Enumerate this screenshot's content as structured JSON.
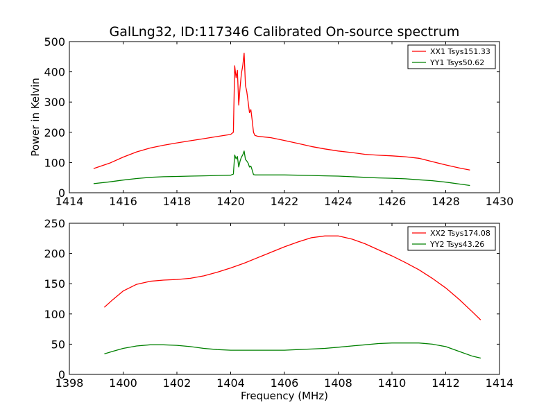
{
  "chart_data": [
    {
      "type": "line",
      "title": "GalLng32, ID:117346 Calibrated On-source spectrum",
      "xlabel": "",
      "ylabel": "Power in Kelvin",
      "xlim": [
        1414,
        1430
      ],
      "ylim": [
        0,
        500
      ],
      "xticks": [
        "1414",
        "1416",
        "1418",
        "1420",
        "1422",
        "1424",
        "1426",
        "1428",
        "1430"
      ],
      "yticks": [
        "0",
        "100",
        "200",
        "300",
        "400",
        "500"
      ],
      "legend": "top-right",
      "grid": false,
      "series": [
        {
          "name": "XX1 Tsys151.33",
          "color": "#ff0000",
          "x": [
            1414.9,
            1415.5,
            1416.0,
            1416.5,
            1417.0,
            1417.5,
            1418.0,
            1418.5,
            1419.0,
            1419.5,
            1420.0,
            1420.1,
            1420.15,
            1420.2,
            1420.25,
            1420.3,
            1420.35,
            1420.4,
            1420.45,
            1420.5,
            1420.55,
            1420.6,
            1420.65,
            1420.7,
            1420.75,
            1420.8,
            1420.85,
            1420.9,
            1421.0,
            1421.5,
            1422.0,
            1422.5,
            1423.0,
            1423.5,
            1424.0,
            1424.5,
            1425.0,
            1425.5,
            1426.0,
            1426.5,
            1427.0,
            1427.5,
            1428.0,
            1428.5,
            1428.9
          ],
          "values": [
            80,
            98,
            118,
            135,
            148,
            157,
            165,
            172,
            179,
            186,
            193,
            200,
            420,
            380,
            405,
            290,
            350,
            395,
            420,
            462,
            355,
            335,
            300,
            265,
            275,
            240,
            200,
            190,
            187,
            182,
            173,
            163,
            153,
            145,
            138,
            133,
            127,
            124,
            122,
            119,
            114,
            103,
            92,
            82,
            75
          ]
        },
        {
          "name": "YY1 Tsys50.62",
          "color": "#008000",
          "x": [
            1414.9,
            1415.5,
            1416.0,
            1416.5,
            1417.0,
            1417.5,
            1418.0,
            1418.5,
            1419.0,
            1419.5,
            1420.0,
            1420.1,
            1420.15,
            1420.2,
            1420.25,
            1420.3,
            1420.35,
            1420.4,
            1420.45,
            1420.5,
            1420.55,
            1420.6,
            1420.65,
            1420.7,
            1420.75,
            1420.8,
            1420.85,
            1420.9,
            1421.0,
            1421.5,
            1422.0,
            1422.5,
            1423.0,
            1423.5,
            1424.0,
            1424.5,
            1425.0,
            1425.5,
            1426.0,
            1426.5,
            1427.0,
            1427.5,
            1428.0,
            1428.5,
            1428.9
          ],
          "values": [
            30,
            36,
            42,
            47,
            51,
            53,
            54,
            55,
            56,
            57,
            58,
            62,
            125,
            112,
            120,
            85,
            105,
            118,
            125,
            138,
            110,
            105,
            98,
            85,
            88,
            75,
            60,
            59,
            59,
            59,
            59,
            58,
            57,
            56,
            55,
            53,
            51,
            49,
            48,
            46,
            43,
            40,
            35,
            29,
            24
          ]
        }
      ]
    },
    {
      "type": "line",
      "title": "",
      "xlabel": "Frequency (MHz)",
      "ylabel": "",
      "xlim": [
        1398,
        1414
      ],
      "ylim": [
        0,
        250
      ],
      "xticks": [
        "1398",
        "1400",
        "1402",
        "1404",
        "1406",
        "1408",
        "1410",
        "1412",
        "1414"
      ],
      "yticks": [
        "0",
        "50",
        "100",
        "150",
        "200",
        "250"
      ],
      "legend": "top-right",
      "grid": false,
      "series": [
        {
          "name": "XX2 Tsys174.08",
          "color": "#ff0000",
          "x": [
            1399.3,
            1399.6,
            1400.0,
            1400.5,
            1401.0,
            1401.5,
            1402.0,
            1402.5,
            1403.0,
            1403.5,
            1404.0,
            1404.5,
            1405.0,
            1405.5,
            1406.0,
            1406.5,
            1407.0,
            1407.5,
            1408.0,
            1408.5,
            1409.0,
            1409.5,
            1410.0,
            1410.5,
            1411.0,
            1411.5,
            1412.0,
            1412.5,
            1413.0,
            1413.3
          ],
          "values": [
            111,
            123,
            138,
            149,
            154,
            156,
            157,
            159,
            163,
            169,
            176,
            184,
            193,
            202,
            211,
            219,
            226,
            229,
            229,
            224,
            216,
            206,
            196,
            185,
            173,
            159,
            143,
            124,
            103,
            90
          ]
        },
        {
          "name": "YY2 Tsys43.26",
          "color": "#008000",
          "x": [
            1399.3,
            1399.6,
            1400.0,
            1400.5,
            1401.0,
            1401.5,
            1402.0,
            1402.5,
            1403.0,
            1403.5,
            1404.0,
            1404.5,
            1405.0,
            1405.5,
            1406.0,
            1406.5,
            1407.0,
            1407.5,
            1408.0,
            1408.5,
            1409.0,
            1409.5,
            1410.0,
            1410.5,
            1411.0,
            1411.5,
            1412.0,
            1412.5,
            1413.0,
            1413.3
          ],
          "values": [
            34,
            38,
            43,
            47,
            49,
            49,
            48,
            46,
            43,
            41,
            40,
            40,
            40,
            40,
            40,
            41,
            42,
            43,
            45,
            47,
            49,
            51,
            52,
            52,
            52,
            50,
            46,
            38,
            30,
            27
          ]
        }
      ]
    }
  ]
}
